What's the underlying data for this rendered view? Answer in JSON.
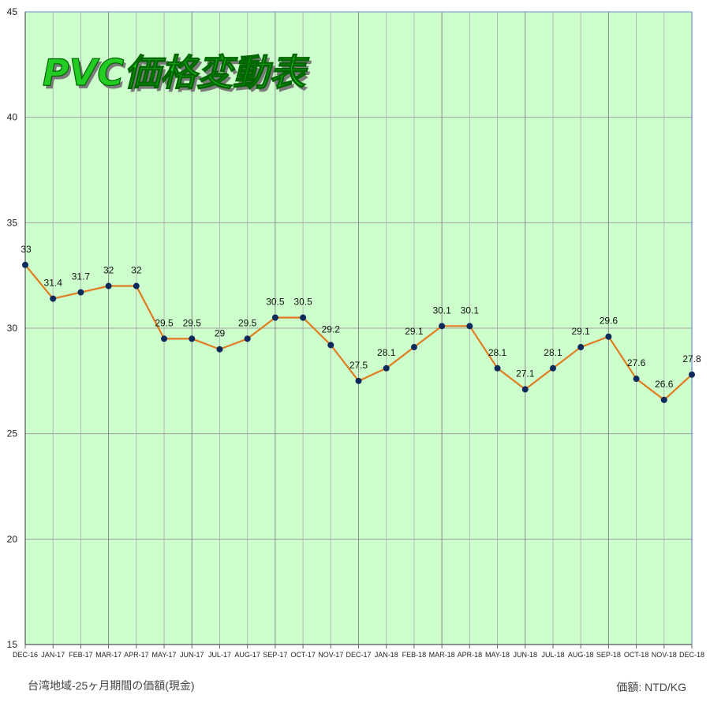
{
  "chart_data": {
    "type": "line",
    "title": "PVC価格変動表",
    "categories": [
      "DEC-16",
      "JAN-17",
      "FEB-17",
      "MAR-17",
      "APR-17",
      "MAY-17",
      "JUN-17",
      "JUL-17",
      "AUG-17",
      "SEP-17",
      "OCT-17",
      "NOV-17",
      "DEC-17",
      "JAN-18",
      "FEB-18",
      "MAR-18",
      "APR-18",
      "MAY-18",
      "JUN-18",
      "JUL-18",
      "AUG-18",
      "SEP-18",
      "OCT-18",
      "NOV-18",
      "DEC-18"
    ],
    "values": [
      33,
      31.4,
      31.7,
      32,
      32,
      29.5,
      29.5,
      29,
      29.5,
      30.5,
      30.5,
      29.2,
      27.5,
      28.1,
      29.1,
      30.1,
      30.1,
      28.1,
      27.1,
      28.1,
      29.1,
      29.6,
      27.6,
      26.6,
      27.8
    ],
    "ylim": [
      15,
      45
    ],
    "yticks": [
      15,
      20,
      25,
      30,
      35,
      40,
      45
    ],
    "grid": true,
    "line_color": "#e07b1f",
    "marker_color": "#0d2a5c",
    "plot_bg": "#ccffcc",
    "footnote_left": "台湾地域-25ヶ月期間の価額(現金)",
    "footnote_right": "価額: NTD/KG"
  }
}
